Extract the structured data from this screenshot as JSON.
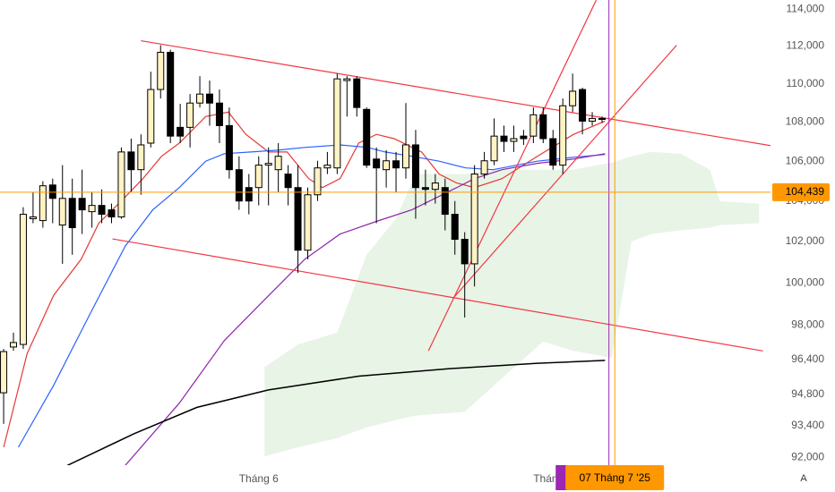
{
  "chart_data": {
    "type": "candlestick",
    "categories": [
      null,
      null,
      null,
      null,
      null,
      null,
      null,
      null,
      null,
      null,
      null,
      null,
      null,
      null,
      null,
      null,
      null,
      null,
      null,
      null,
      null,
      null,
      null,
      null,
      null,
      null,
      "Tháng 6",
      null,
      null,
      null,
      null,
      null,
      null,
      null,
      null,
      null,
      null,
      null,
      null,
      null,
      null,
      null,
      null,
      null,
      null,
      null,
      null,
      null,
      null,
      null,
      null,
      null,
      null,
      null,
      null,
      null,
      "Tháng 7",
      null,
      null,
      null,
      null,
      null
    ],
    "open": [
      94880,
      96980,
      97100,
      103120,
      103030,
      104800,
      102810,
      104130,
      104130,
      103470,
      103780,
      103560,
      103210,
      106470,
      105570,
      106920,
      109700,
      111670,
      107730,
      107730,
      108990,
      109460,
      108990,
      107820,
      105570,
      104670,
      104670,
      105800,
      105570,
      105350,
      104670,
      101580,
      104310,
      105660,
      105660,
      110170,
      110260,
      108660,
      106110,
      105570,
      106020,
      105660,
      106830,
      104670,
      104580,
      104670,
      103340,
      102110,
      100920,
      105350,
      106020,
      107280,
      107010,
      107280,
      107280,
      108380,
      107150,
      105800,
      108850,
      109700,
      108050,
      108190
    ],
    "high": [
      96890,
      97650,
      103690,
      104450,
      104990,
      105120,
      105800,
      105120,
      105570,
      104450,
      104580,
      103870,
      106700,
      107150,
      107370,
      110640,
      112050,
      111810,
      108950,
      109460,
      110400,
      110170,
      109700,
      108760,
      106250,
      105350,
      106250,
      106700,
      106920,
      105800,
      105800,
      104670,
      106020,
      106470,
      110540,
      110400,
      110400,
      108760,
      106700,
      106560,
      106470,
      108990,
      107600,
      105570,
      105350,
      105120,
      104000,
      102460,
      105800,
      106470,
      108190,
      107820,
      107820,
      107600,
      108760,
      108760,
      107600,
      109230,
      110540,
      109790,
      108520,
      108290
    ],
    "low": [
      93480,
      96810,
      96890,
      102900,
      102680,
      102900,
      100920,
      101360,
      102370,
      102680,
      102900,
      102900,
      103120,
      104450,
      104310,
      106700,
      109230,
      106920,
      106920,
      106700,
      108760,
      107820,
      106920,
      105120,
      103560,
      103340,
      103780,
      103780,
      104450,
      103780,
      100480,
      101140,
      104000,
      105350,
      105350,
      108290,
      108290,
      105660,
      102900,
      104670,
      104450,
      105120,
      103120,
      103780,
      103870,
      102550,
      101360,
      98360,
      99830,
      105120,
      105800,
      106470,
      106470,
      106830,
      106920,
      106920,
      105570,
      105350,
      108520,
      107370,
      107820,
      107960
    ],
    "close": [
      96770,
      97190,
      103340,
      103210,
      104760,
      104130,
      104130,
      102680,
      103560,
      103780,
      103340,
      103210,
      106470,
      105570,
      106830,
      109700,
      111670,
      107280,
      107280,
      108990,
      109460,
      108990,
      107820,
      105570,
      104000,
      104000,
      105800,
      105890,
      106250,
      104670,
      101580,
      104310,
      105660,
      105800,
      110260,
      110260,
      108760,
      105800,
      105660,
      106020,
      105660,
      106830,
      104670,
      104580,
      104900,
      103340,
      102110,
      100920,
      105350,
      106020,
      107280,
      107010,
      107150,
      107150,
      108380,
      107150,
      105800,
      108850,
      109610,
      108050,
      108190,
      108140
    ],
    "up_color": "#fff3c4",
    "down_color": "#000000",
    "xlim": [
      -0.37,
      78.17
    ],
    "ylim": [
      91650,
      114500
    ],
    "log_scale": true,
    "yticks": [
      {
        "value": 92000,
        "label": "92,000"
      },
      {
        "value": 93400,
        "label": "93,400"
      },
      {
        "value": 94800,
        "label": "94,800"
      },
      {
        "value": 96400,
        "label": "96,400"
      },
      {
        "value": 98000,
        "label": "98,000"
      },
      {
        "value": 100000,
        "label": "100,000"
      },
      {
        "value": 102000,
        "label": "102,000"
      },
      {
        "value": 104000,
        "label": "104,000"
      },
      {
        "value": 106000,
        "label": "106,000"
      },
      {
        "value": 108000,
        "label": "108,000"
      },
      {
        "value": 110000,
        "label": "110,000"
      },
      {
        "value": 112000,
        "label": "112,000"
      },
      {
        "value": 114000,
        "label": "114,000"
      }
    ],
    "cloud": {
      "color": "#e8f4e6",
      "x": [
        26.6,
        30,
        34,
        37,
        40,
        42,
        47,
        50,
        55,
        58,
        62,
        64,
        66,
        69,
        72,
        73,
        77
      ],
      "upper": [
        96060,
        97100,
        97650,
        101360,
        103120,
        105350,
        105350,
        105570,
        105570,
        105570,
        105930,
        106250,
        106470,
        106380,
        105570,
        104000,
        103870
      ],
      "lower": [
        92040,
        92440,
        92840,
        93320,
        93650,
        93850,
        94020,
        95220,
        97240,
        96810,
        96480,
        102000,
        102370,
        102550,
        102680,
        102810,
        102900
      ]
    },
    "overlays": [
      {
        "color": "#e53935",
        "x": [
          0,
          2.4,
          5.1,
          7.9,
          9.7,
          12,
          14.2,
          16.1,
          17.9,
          20.6,
          22.9,
          24.7,
          27,
          28.9,
          31.1,
          32.5,
          34.3,
          36.2,
          38,
          39.8,
          42.6,
          44.4,
          46.2,
          48,
          50.8,
          54.4,
          58.1,
          61.3
        ],
        "values": [
          92440,
          96680,
          99410,
          101140,
          102900,
          104000,
          105120,
          106250,
          106920,
          108290,
          108520,
          107370,
          106470,
          106470,
          105120,
          104670,
          105120,
          106920,
          107370,
          107150,
          106470,
          105350,
          104900,
          104670,
          105120,
          106250,
          107370,
          108050
        ]
      },
      {
        "color": "#2962ff",
        "x": [
          1.5,
          5.1,
          8.8,
          12.4,
          15.2,
          17.9,
          20.6,
          22.5,
          25.2,
          27.9,
          30.7,
          34.3,
          37.1,
          38.9,
          41.6,
          44.4,
          47.1,
          49.9,
          54.4,
          58.1,
          61.3
        ],
        "values": [
          92440,
          95220,
          98520,
          101780,
          103560,
          104670,
          106000,
          106380,
          106470,
          106560,
          106700,
          106830,
          106700,
          106470,
          106250,
          106000,
          105660,
          105570,
          106000,
          106200,
          106340
        ]
      },
      {
        "color": "#8e24aa",
        "x": [
          12.4,
          17.9,
          22.5,
          27,
          30.7,
          34.3,
          38,
          41.6,
          45.3,
          48,
          50.8,
          54.4,
          58.1,
          61.3
        ],
        "values": [
          91640,
          94410,
          97280,
          99390,
          101140,
          102370,
          102990,
          103560,
          104450,
          105120,
          105570,
          105890,
          106110,
          106380
        ]
      },
      {
        "color": "#000000",
        "x": [
          6.5,
          13.3,
          19.7,
          27,
          36.2,
          45.3,
          54.4,
          61.3
        ],
        "values": [
          91640,
          93040,
          94220,
          95010,
          95640,
          95980,
          96230,
          96360
        ]
      }
    ],
    "trendlines": [
      {
        "color": "#f23645",
        "x": [
          14,
          78.2
        ],
        "values": [
          112290,
          106790
        ]
      },
      {
        "color": "#f23645",
        "x": [
          11.1,
          77.4
        ],
        "values": [
          102130,
          96800
        ]
      },
      {
        "color": "#f23645",
        "x": [
          43.3,
          60.4
        ],
        "values": [
          96800,
          114490
        ]
      },
      {
        "color": "#f23645",
        "x": [
          45.8,
          68.6
        ],
        "values": [
          99260,
          112050
        ]
      }
    ],
    "marker": {
      "color": "#9c27b0",
      "x": 61.7
    },
    "crosshair": {
      "color": "#ff9800",
      "x": 62.3,
      "y": {
        "value": 104439,
        "label": "104,439"
      },
      "x_label": "07 Tháng 7 '25"
    },
    "auto_scale_button": "A"
  }
}
